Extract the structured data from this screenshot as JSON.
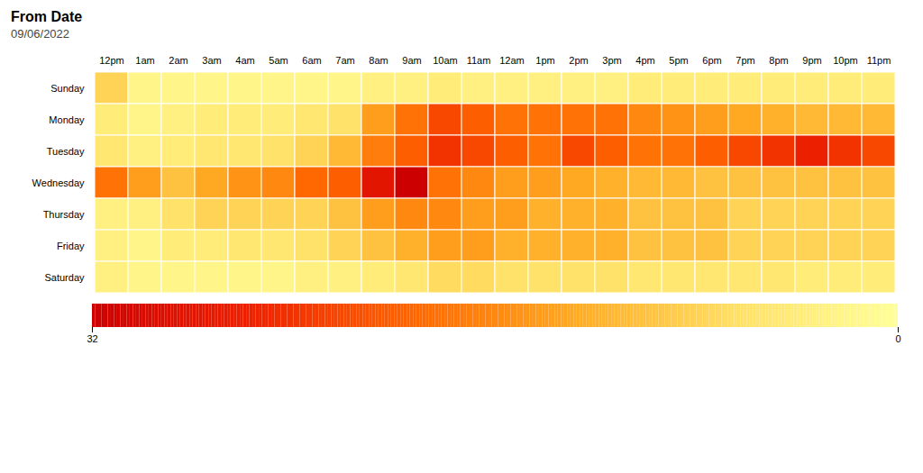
{
  "chart_data": {
    "type": "heatmap",
    "title": "From Date",
    "subtitle": "09/06/2022",
    "x": [
      "12pm",
      "1am",
      "2am",
      "3am",
      "4am",
      "5am",
      "6am",
      "7am",
      "8am",
      "9am",
      "10am",
      "11am",
      "12am",
      "1pm",
      "2pm",
      "3pm",
      "4pm",
      "5pm",
      "6pm",
      "7pm",
      "8pm",
      "9pm",
      "10pm",
      "11pm"
    ],
    "y": [
      "Sunday",
      "Monday",
      "Tuesday",
      "Wednesday",
      "Thursday",
      "Friday",
      "Saturday"
    ],
    "values": [
      [
        8,
        2,
        2,
        2,
        2,
        2,
        2,
        2,
        3,
        3,
        4,
        3,
        3,
        3,
        3,
        3,
        4,
        4,
        4,
        4,
        4,
        4,
        4,
        4
      ],
      [
        4,
        2,
        3,
        4,
        4,
        4,
        5,
        6,
        14,
        18,
        22,
        20,
        18,
        18,
        18,
        18,
        16,
        15,
        14,
        13,
        12,
        11,
        11,
        11
      ],
      [
        5,
        3,
        4,
        5,
        5,
        6,
        8,
        11,
        17,
        20,
        24,
        22,
        20,
        18,
        22,
        20,
        18,
        18,
        20,
        22,
        24,
        26,
        24,
        22
      ],
      [
        18,
        14,
        10,
        13,
        15,
        16,
        19,
        20,
        28,
        32,
        18,
        16,
        14,
        14,
        13,
        12,
        11,
        11,
        10,
        10,
        10,
        10,
        10,
        10
      ],
      [
        3,
        3,
        6,
        8,
        8,
        8,
        8,
        10,
        14,
        16,
        16,
        14,
        14,
        12,
        12,
        12,
        10,
        10,
        10,
        8,
        8,
        8,
        8,
        8
      ],
      [
        3,
        2,
        4,
        4,
        5,
        5,
        6,
        8,
        10,
        12,
        14,
        14,
        12,
        12,
        12,
        12,
        10,
        10,
        10,
        8,
        8,
        8,
        8,
        8
      ],
      [
        3,
        2,
        2,
        2,
        2,
        2,
        3,
        3,
        4,
        5,
        7,
        7,
        6,
        6,
        6,
        6,
        5,
        5,
        5,
        5,
        5,
        4,
        4,
        4
      ]
    ],
    "colors": [
      "#ffff99",
      "#ffe066",
      "#ffaa22",
      "#ff6600",
      "#ee2200",
      "#cc0000"
    ],
    "colorbar": {
      "range": [
        0,
        32
      ],
      "ticks": [
        32,
        0
      ]
    }
  }
}
